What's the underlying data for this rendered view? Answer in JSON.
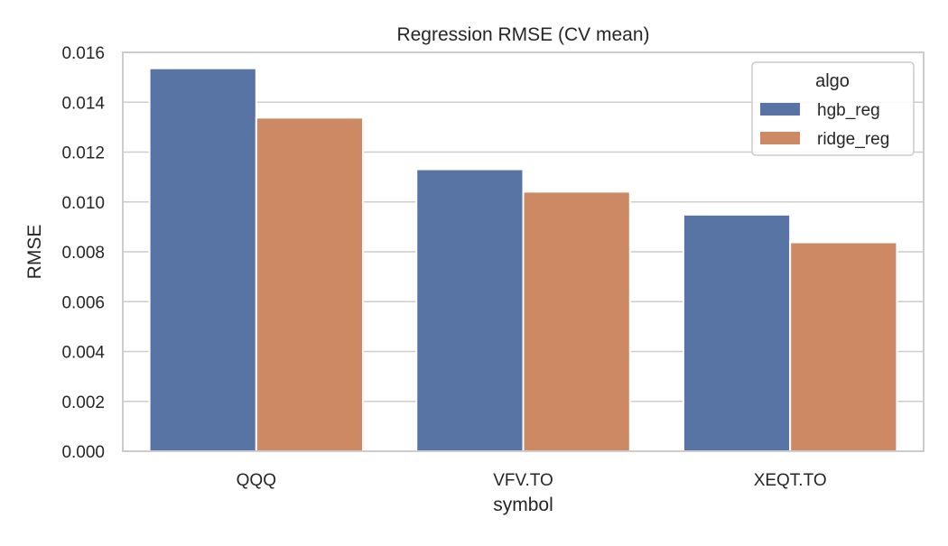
{
  "chart_data": {
    "type": "bar",
    "title": "Regression RMSE (CV mean)",
    "xlabel": "symbol",
    "ylabel": "RMSE",
    "categories": [
      "QQQ",
      "VFV.TO",
      "XEQT.TO"
    ],
    "series": [
      {
        "name": "hgb_reg",
        "values": [
          0.01536,
          0.01131,
          0.00949
        ],
        "color": "#5874a4"
      },
      {
        "name": "ridge_reg",
        "values": [
          0.01338,
          0.01041,
          0.00838
        ],
        "color": "#cd8963"
      }
    ],
    "ylim": [
      0,
      0.016
    ],
    "yticks": [
      0.0,
      0.002,
      0.004,
      0.006,
      0.008,
      0.01,
      0.012,
      0.014,
      0.016
    ],
    "ytick_labels": [
      "0.000",
      "0.002",
      "0.004",
      "0.006",
      "0.008",
      "0.010",
      "0.012",
      "0.014",
      "0.016"
    ],
    "grid": "y",
    "legend": {
      "title": "algo",
      "placement": "top-right"
    }
  }
}
